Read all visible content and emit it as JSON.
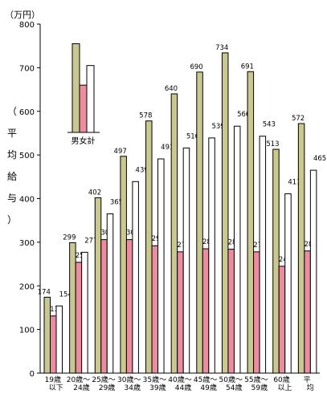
{
  "chart_data": {
    "type": "bar",
    "unit_label": "（万円）",
    "ylabel": "（平均給与）",
    "ylim": [
      0,
      800
    ],
    "yticks": [
      0,
      100,
      200,
      300,
      400,
      500,
      600,
      700,
      800
    ],
    "categories": [
      [
        "19歳",
        "以下"
      ],
      [
        "20歳～",
        "24歳"
      ],
      [
        "25歳～",
        "29歳"
      ],
      [
        "30歳～",
        "34歳"
      ],
      [
        "35歳～",
        "39歳"
      ],
      [
        "40歳～",
        "44歳"
      ],
      [
        "45歳～",
        "49歳"
      ],
      [
        "50歳～",
        "54歳"
      ],
      [
        "55歳～",
        "59歳"
      ],
      [
        "60歳",
        "以上"
      ],
      [
        "平",
        "均"
      ]
    ],
    "series": [
      {
        "name": "男",
        "color": "#c8c890",
        "values": [
          174,
          299,
          402,
          497,
          578,
          640,
          690,
          734,
          691,
          513,
          572
        ]
      },
      {
        "name": "女",
        "color": "#ec8c9e",
        "values": [
          131,
          254,
          306,
          306,
          292,
          278,
          285,
          284,
          278,
          245,
          280
        ]
      },
      {
        "name": "計",
        "color": "#ffffff",
        "values": [
          154,
          277,
          365,
          439,
          491,
          516,
          539,
          566,
          543,
          411,
          465
        ]
      }
    ],
    "legend": {
      "placement": "top-left",
      "labels": "男女計",
      "sample_values": [
        755,
        660,
        705
      ]
    }
  }
}
